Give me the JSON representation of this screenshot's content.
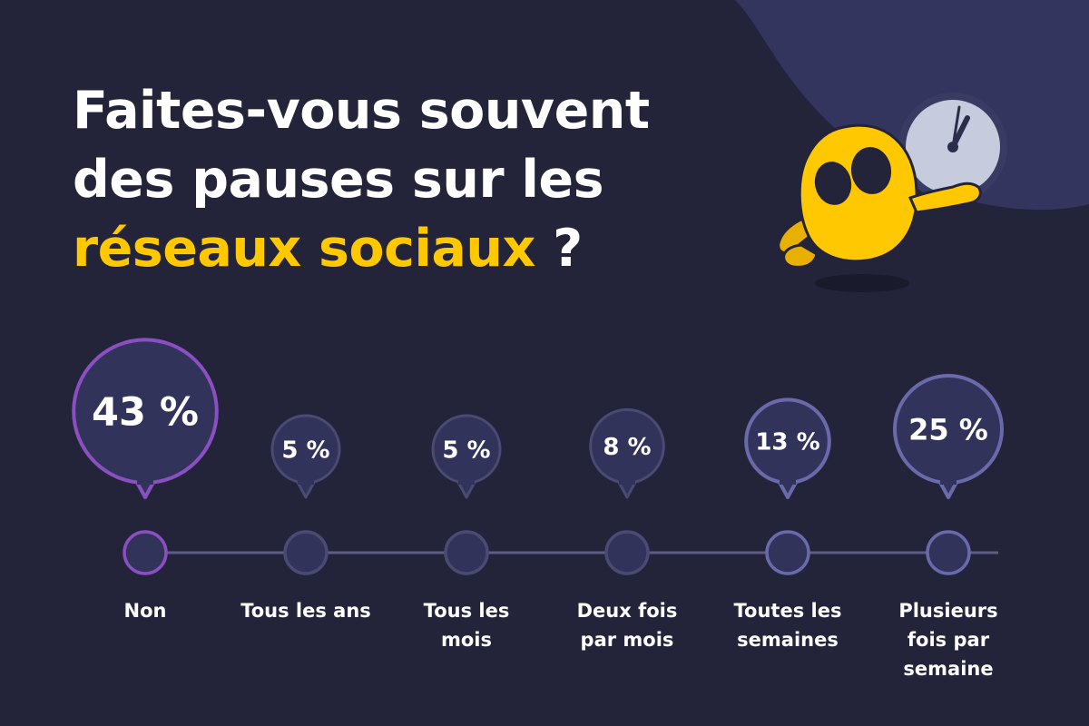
{
  "title": {
    "line1": "Faites-vous souvent",
    "line2": "des pauses sur les",
    "highlight": "réseaux sociaux",
    "suffix": "?"
  },
  "colors": {
    "background": "#23243a",
    "highlight": "#ffc800",
    "accent_purple": "#8a4fc0",
    "accent_periwinkle": "#6a6aab",
    "muted_border": "#4a4a72",
    "bubble_fill": "#32335a",
    "blob": "#34355f",
    "mascot": "#ffc800",
    "clock_face": "#c7cbde"
  },
  "illustration": {
    "mascot": "yellow-ghost-mascot-icon",
    "clock": "wall-clock-icon"
  },
  "chart_data": {
    "type": "bubble",
    "title": "Faites-vous souvent des pauses sur les réseaux sociaux ?",
    "unit": "%",
    "categories": [
      "Non",
      "Tous les ans",
      "Tous les mois",
      "Deux fois par mois",
      "Toutes les semaines",
      "Plusieurs fois par semaine"
    ],
    "values": [
      43,
      5,
      5,
      8,
      13,
      25
    ],
    "value_labels": [
      "43 %",
      "5 %",
      "5 %",
      "8 %",
      "13 %",
      "25 %"
    ],
    "category_lines": [
      [
        "Non"
      ],
      [
        "Tous les ans"
      ],
      [
        "Tous les",
        "mois"
      ],
      [
        "Deux fois",
        "par mois"
      ],
      [
        "Toutes les",
        "semaines"
      ],
      [
        "Plusieurs",
        "fois par",
        "semaine"
      ]
    ],
    "highlighted_category": "Non"
  }
}
